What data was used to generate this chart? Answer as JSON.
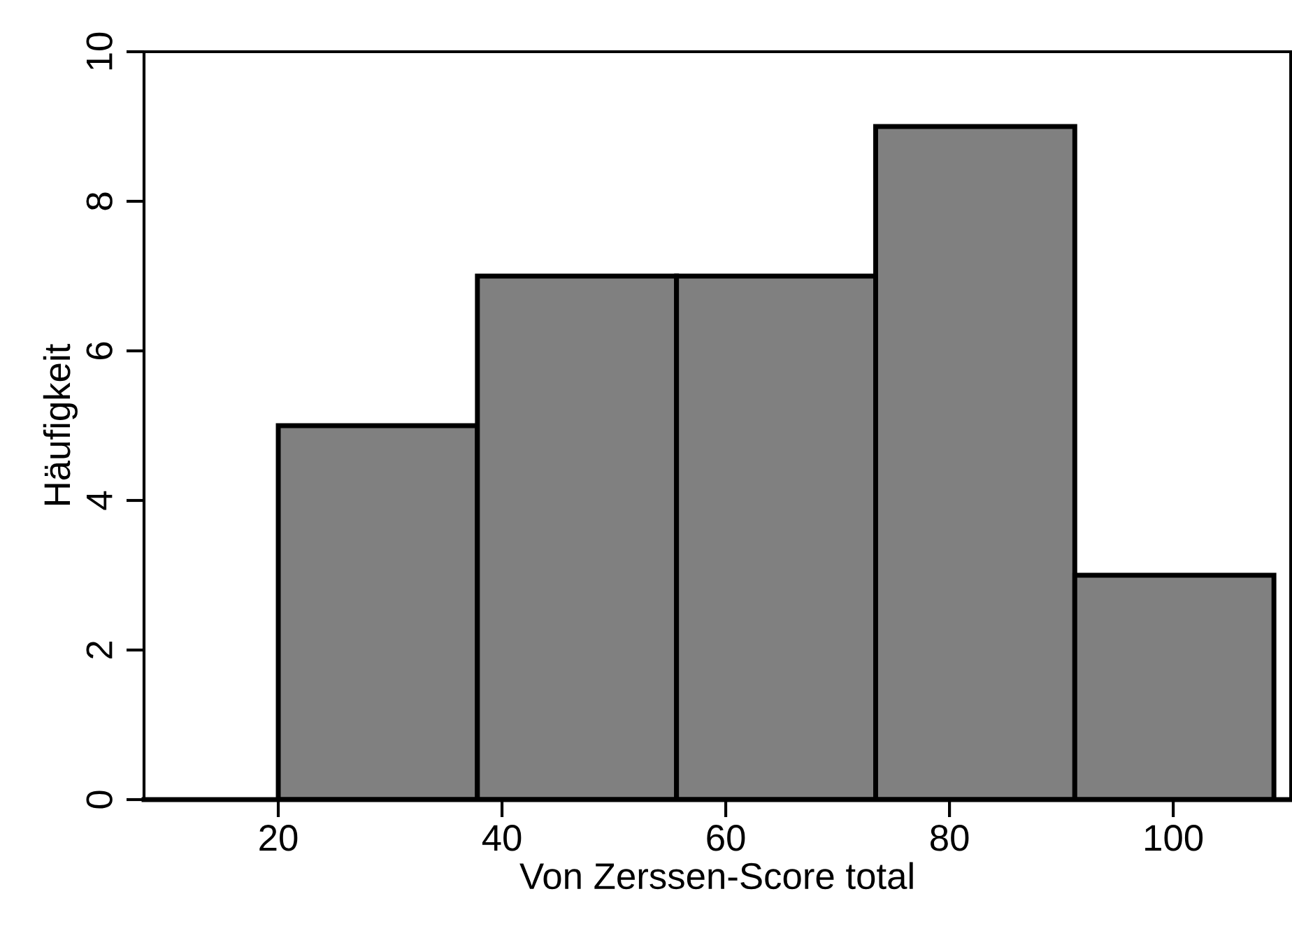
{
  "chart_data": {
    "type": "histogram",
    "xlabel": "Von Zerssen-Score total",
    "ylabel": "Häufigkeit",
    "bins": [
      20,
      37.8,
      55.6,
      73.4,
      91.2,
      109
    ],
    "values": [
      5,
      7,
      7,
      9,
      3
    ],
    "color": "#808080",
    "xlim": [
      8,
      110.5
    ],
    "xticks": [
      20,
      40,
      60,
      80,
      100
    ],
    "ylim": [
      0,
      10
    ],
    "yticks": [
      0,
      2,
      4,
      6,
      8,
      10
    ],
    "grid": false
  }
}
